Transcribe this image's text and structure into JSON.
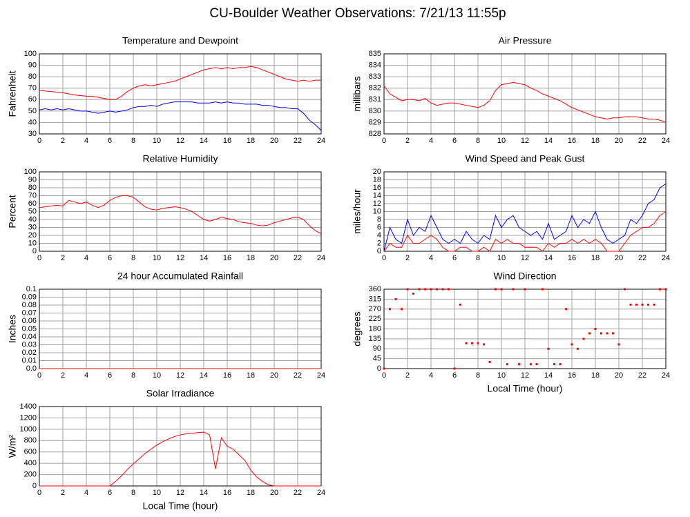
{
  "title": "CU-Boulder Weather Observations: 7/21/13 11:55p",
  "chart_data": [
    {
      "type": "line",
      "title": "Temperature and Dewpoint",
      "ylabel": "Fahrenheit",
      "x": [
        0,
        0.5,
        1,
        1.5,
        2,
        2.5,
        3,
        3.5,
        4,
        4.5,
        5,
        5.5,
        6,
        6.5,
        7,
        7.5,
        8,
        8.5,
        9,
        9.5,
        10,
        10.5,
        11,
        11.5,
        12,
        12.5,
        13,
        13.5,
        14,
        14.5,
        15,
        15.5,
        16,
        16.5,
        17,
        17.5,
        18,
        18.5,
        19,
        19.5,
        20,
        20.5,
        21,
        21.5,
        22,
        22.5,
        23,
        23.5,
        24
      ],
      "series": [
        {
          "color": "#ff0000",
          "values": [
            68,
            67.5,
            67,
            66.5,
            66,
            65,
            64,
            63.5,
            63,
            63,
            62,
            61,
            60,
            60,
            63,
            67,
            70,
            72,
            73,
            72,
            73,
            74,
            75,
            76,
            78,
            80,
            82,
            84,
            86,
            87,
            88,
            87,
            88,
            87,
            88,
            88,
            89,
            88,
            86,
            84,
            82,
            80,
            78,
            77,
            76,
            77,
            76,
            77,
            77
          ]
        },
        {
          "color": "#0000ff",
          "values": [
            51,
            52,
            51,
            52,
            51,
            52,
            51,
            50,
            50,
            49,
            48,
            49,
            50,
            49,
            50,
            51,
            53,
            54,
            54,
            55,
            54,
            56,
            57,
            58,
            58,
            58,
            58,
            57,
            57,
            57,
            58,
            57,
            58,
            57,
            57,
            56,
            56,
            56,
            55,
            55,
            54,
            53,
            53,
            52,
            52,
            48,
            42,
            38,
            33
          ]
        }
      ],
      "xlim": [
        0,
        24
      ],
      "xticks": [
        0,
        2,
        4,
        6,
        8,
        10,
        12,
        14,
        16,
        18,
        20,
        22,
        24
      ],
      "ylim": [
        30,
        100
      ],
      "yticks": [
        30,
        40,
        50,
        60,
        70,
        80,
        90,
        100
      ],
      "grid": true
    },
    {
      "type": "line",
      "title": "Air Pressure",
      "ylabel": "millibars",
      "x": [
        0,
        0.5,
        1,
        1.5,
        2,
        2.5,
        3,
        3.5,
        4,
        4.5,
        5,
        5.5,
        6,
        6.5,
        7,
        7.5,
        8,
        8.5,
        9,
        9.5,
        10,
        10.5,
        11,
        11.5,
        12,
        12.5,
        13,
        13.5,
        14,
        14.5,
        15,
        15.5,
        16,
        16.5,
        17,
        17.5,
        18,
        18.5,
        19,
        19.5,
        20,
        20.5,
        21,
        21.5,
        22,
        22.5,
        23,
        23.5,
        24
      ],
      "series": [
        {
          "color": "#ff0000",
          "values": [
            832.2,
            831.5,
            831.2,
            830.9,
            831,
            831,
            830.9,
            831.1,
            830.7,
            830.5,
            830.6,
            830.7,
            830.7,
            830.6,
            830.5,
            830.4,
            830.3,
            830.5,
            830.9,
            831.8,
            832.3,
            832.4,
            832.5,
            832.4,
            832.3,
            832.0,
            831.8,
            831.5,
            831.3,
            831.1,
            830.9,
            830.6,
            830.3,
            830.1,
            829.9,
            829.7,
            829.5,
            829.4,
            829.3,
            829.4,
            829.4,
            829.5,
            829.5,
            829.5,
            829.4,
            829.3,
            829.3,
            829.2,
            829.0
          ]
        }
      ],
      "xlim": [
        0,
        24
      ],
      "xticks": [
        0,
        2,
        4,
        6,
        8,
        10,
        12,
        14,
        16,
        18,
        20,
        22,
        24
      ],
      "ylim": [
        828,
        835
      ],
      "yticks": [
        828,
        829,
        830,
        831,
        832,
        833,
        834,
        835
      ],
      "grid": true
    },
    {
      "type": "line",
      "title": "Relative Humidity",
      "ylabel": "Percent",
      "x": [
        0,
        0.5,
        1,
        1.5,
        2,
        2.5,
        3,
        3.5,
        4,
        4.5,
        5,
        5.5,
        6,
        6.5,
        7,
        7.5,
        8,
        8.5,
        9,
        9.5,
        10,
        10.5,
        11,
        11.5,
        12,
        12.5,
        13,
        13.5,
        14,
        14.5,
        15,
        15.5,
        16,
        16.5,
        17,
        17.5,
        18,
        18.5,
        19,
        19.5,
        20,
        20.5,
        21,
        21.5,
        22,
        22.5,
        23,
        23.5,
        24
      ],
      "series": [
        {
          "color": "#ff0000",
          "values": [
            55,
            56,
            57,
            58,
            57,
            64,
            62,
            60,
            62,
            58,
            55,
            58,
            64,
            68,
            70,
            70,
            68,
            62,
            56,
            53,
            52,
            54,
            55,
            56,
            55,
            53,
            50,
            45,
            40,
            38,
            40,
            43,
            41,
            40,
            37,
            36,
            35,
            33,
            32,
            33,
            36,
            38,
            40,
            42,
            43,
            40,
            32,
            26,
            22
          ]
        }
      ],
      "xlim": [
        0,
        24
      ],
      "xticks": [
        0,
        2,
        4,
        6,
        8,
        10,
        12,
        14,
        16,
        18,
        20,
        22,
        24
      ],
      "ylim": [
        0,
        100
      ],
      "yticks": [
        0,
        10,
        20,
        30,
        40,
        50,
        60,
        70,
        80,
        90,
        100
      ],
      "grid": true
    },
    {
      "type": "line",
      "title": "Wind Speed and Peak Gust",
      "ylabel": "miles/hour",
      "x": [
        0,
        0.5,
        1,
        1.5,
        2,
        2.5,
        3,
        3.5,
        4,
        4.5,
        5,
        5.5,
        6,
        6.5,
        7,
        7.5,
        8,
        8.5,
        9,
        9.5,
        10,
        10.5,
        11,
        11.5,
        12,
        12.5,
        13,
        13.5,
        14,
        14.5,
        15,
        15.5,
        16,
        16.5,
        17,
        17.5,
        18,
        18.5,
        19,
        19.5,
        20,
        20.5,
        21,
        21.5,
        22,
        22.5,
        23,
        23.5,
        24
      ],
      "series": [
        {
          "color": "#0000ff",
          "values": [
            0,
            6,
            3,
            2,
            8,
            4,
            6,
            5,
            9,
            6,
            3,
            2,
            3,
            2,
            5,
            3,
            2,
            4,
            3,
            9,
            6,
            8,
            9,
            6,
            5,
            4,
            5,
            3,
            7,
            3,
            4,
            5,
            9,
            6,
            8,
            7,
            10,
            6,
            3,
            2,
            3,
            4,
            8,
            7,
            9,
            12,
            13,
            16,
            17
          ]
        },
        {
          "color": "#ff0000",
          "values": [
            0,
            2,
            1,
            1,
            4,
            2,
            2,
            3,
            4,
            3,
            1,
            0,
            0,
            1,
            1,
            0,
            0,
            1,
            0,
            3,
            2,
            3,
            2,
            2,
            1,
            1,
            1,
            0,
            2,
            1,
            2,
            2,
            3,
            2,
            3,
            2,
            3,
            2,
            0,
            0,
            0,
            2,
            4,
            5,
            6,
            6,
            7,
            9,
            10
          ]
        }
      ],
      "xlim": [
        0,
        24
      ],
      "xticks": [
        0,
        2,
        4,
        6,
        8,
        10,
        12,
        14,
        16,
        18,
        20,
        22,
        24
      ],
      "ylim": [
        0,
        20
      ],
      "yticks": [
        0,
        2,
        4,
        6,
        8,
        10,
        12,
        14,
        16,
        18,
        20
      ],
      "grid": true
    },
    {
      "type": "line",
      "title": "24 hour Accumulated Rainfall",
      "ylabel": "Inches",
      "x": [
        0,
        24
      ],
      "series": [
        {
          "color": "#ff0000",
          "values": [
            0,
            0
          ]
        }
      ],
      "xlim": [
        0,
        24
      ],
      "xticks": [
        0,
        2,
        4,
        6,
        8,
        10,
        12,
        14,
        16,
        18,
        20,
        22,
        24
      ],
      "ylim": [
        0,
        0.1
      ],
      "yticks": [
        {
          "value": 0,
          "label": "0.0"
        },
        0.01,
        0.02,
        0.03,
        0.04,
        0.05,
        0.06,
        0.07,
        0.08,
        0.09,
        0.1
      ],
      "grid": true
    },
    {
      "type": "scatter",
      "title": "Wind Direction",
      "ylabel": "degrees",
      "xlabel": "Local Time (hour)",
      "x": [
        0,
        0.5,
        1,
        1.5,
        2,
        2.5,
        3,
        3.5,
        4,
        4.5,
        5,
        5.5,
        6,
        6.5,
        7,
        7.5,
        8,
        8.5,
        9,
        9.5,
        10,
        10.5,
        11,
        11.5,
        12,
        12.5,
        13,
        13.5,
        14,
        14.5,
        15,
        15.5,
        16,
        16.5,
        17,
        17.5,
        18,
        18.5,
        19,
        19.5,
        20,
        20.5,
        21,
        21.5,
        22,
        22.5,
        23,
        23.5,
        24
      ],
      "series": [
        {
          "color": "#ff0000",
          "values": [
            0,
            270,
            315,
            270,
            360,
            340,
            360,
            360,
            360,
            360,
            360,
            360,
            0,
            290,
            115,
            115,
            115,
            110,
            30,
            360,
            360,
            20,
            360,
            20,
            360,
            20,
            20,
            360,
            90,
            20,
            20,
            270,
            110,
            90,
            135,
            160,
            180,
            160,
            160,
            160,
            110,
            360,
            290,
            290,
            290,
            290,
            290,
            360,
            360
          ]
        }
      ],
      "xlim": [
        0,
        24
      ],
      "xticks": [
        0,
        2,
        4,
        6,
        8,
        10,
        12,
        14,
        16,
        18,
        20,
        22,
        24
      ],
      "ylim": [
        0,
        360
      ],
      "yticks": [
        0,
        45,
        90,
        135,
        180,
        225,
        270,
        315,
        360
      ],
      "grid": true
    },
    {
      "type": "line",
      "title": "Solar Irradiance",
      "ylabel": "W/m²",
      "xlabel": "Local Time (hour)",
      "x": [
        0,
        0.5,
        1,
        1.5,
        2,
        2.5,
        3,
        3.5,
        4,
        4.5,
        5,
        5.5,
        6,
        6.5,
        7,
        7.5,
        8,
        8.5,
        9,
        9.5,
        10,
        10.5,
        11,
        11.5,
        12,
        12.5,
        13,
        13.5,
        14,
        14.5,
        15,
        15.5,
        16,
        16.5,
        17,
        17.5,
        18,
        18.5,
        19,
        19.5,
        20,
        20.5,
        21,
        21.5,
        22,
        22.5,
        23,
        23.5,
        24
      ],
      "series": [
        {
          "color": "#ff0000",
          "values": [
            0,
            0,
            0,
            0,
            0,
            0,
            0,
            0,
            0,
            0,
            0,
            0,
            0,
            80,
            180,
            290,
            390,
            480,
            570,
            650,
            720,
            780,
            830,
            870,
            900,
            920,
            930,
            940,
            950,
            900,
            300,
            850,
            700,
            650,
            550,
            450,
            280,
            160,
            80,
            20,
            0,
            0,
            0,
            0,
            0,
            0,
            0,
            0,
            0
          ]
        }
      ],
      "xlim": [
        0,
        24
      ],
      "xticks": [
        0,
        2,
        4,
        6,
        8,
        10,
        12,
        14,
        16,
        18,
        20,
        22,
        24
      ],
      "ylim": [
        0,
        1400
      ],
      "yticks": [
        0,
        200,
        400,
        600,
        800,
        1000,
        1200,
        1400
      ],
      "grid": true
    }
  ]
}
